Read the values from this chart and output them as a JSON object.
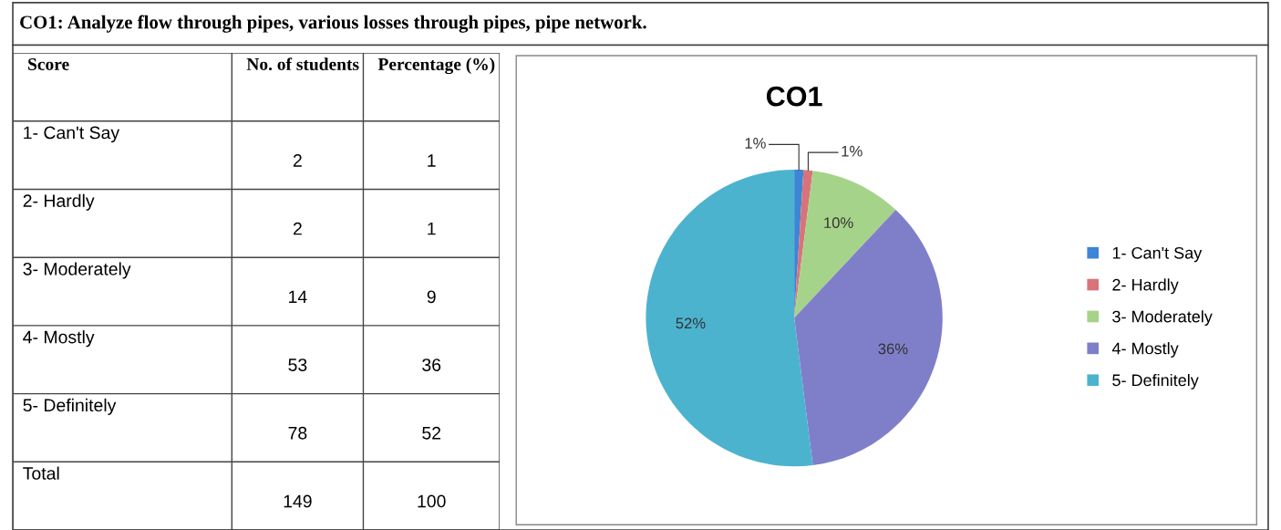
{
  "chart_data": [
    {
      "type": "other",
      "title": "CO1: Analyze flow through pipes, various losses through pipes, pipe network.",
      "annotations": [
        "Score",
        "No. of students",
        "Percentage (%)",
        "1- Can't Say",
        "2",
        "1",
        "2- Hardly",
        "2",
        "1",
        "3- Moderately",
        "14",
        "9",
        "4- Mostly",
        "53",
        "36",
        "5- Definitely",
        "78",
        "52",
        "Total",
        "149",
        "100"
      ]
    },
    {
      "type": "pie",
      "title": "CO1",
      "categories": [
        "1- Can't Say",
        "2- Hardly",
        "3- Moderately",
        "4- Mostly",
        "5- Definitely"
      ],
      "values": [
        1,
        1,
        10,
        36,
        52
      ],
      "colors": [
        "#3d85d6",
        "#d9737a",
        "#a6d38a",
        "#7f7fc9",
        "#4cb3cf"
      ],
      "value_labels": [
        "1%",
        "1%",
        "10%",
        "36%",
        "52%"
      ],
      "legend": "right"
    }
  ]
}
